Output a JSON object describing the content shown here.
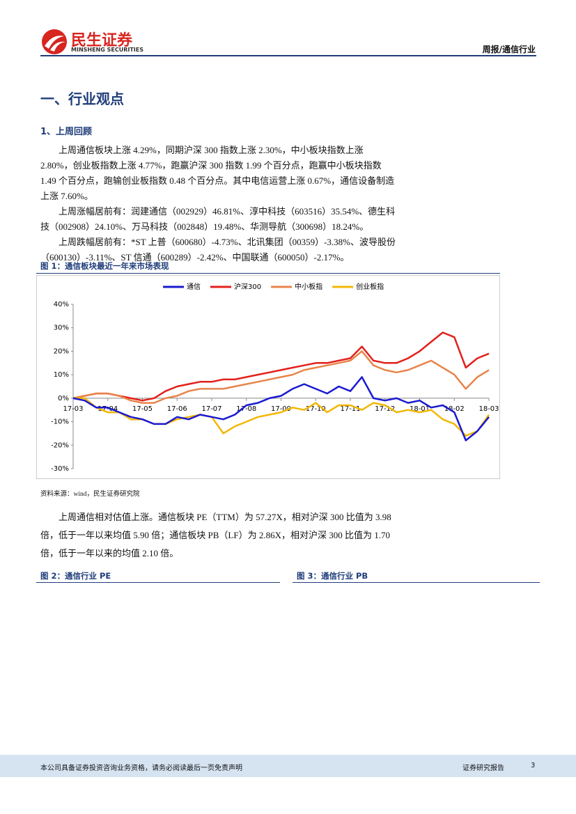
{
  "header": {
    "brand": "民生证券",
    "brand_en": "MINSHENG SECURITIES",
    "section": "周报/通信行业"
  },
  "heading": "一、行业观点",
  "subheading": "1、上周回顾",
  "paragraphs": [
    "上周通信板块上涨 4.29%，同期沪深 300 指数上涨 2.30%，中小板块指数上涨 2.80%，创业板指数上涨 4.77%，跑赢沪深 300 指数 1.99 个百分点，跑赢中小板块指数 1.49 个百分点，跑输创业板指数 0.48 个百分点。其中电信运营上涨 0.67%，通信设备制造上涨 7.60%。",
    "上周涨幅居前有：润建通信（002929）46.81%、淳中科技（603516）35.54%、德生科技（002908）24.10%、万马科技（002848）19.48%、华测导航（300698）18.24%。",
    "上周跌幅居前有：*ST 上普（600680）-4.73%、北讯集团（00359）-3.38%、波导股份（600130）-3.11%、ST 信通（600289）-2.42%、中国联通（600050）-2.17%。"
  ],
  "figure1": {
    "title": "图 1：通信板块最近一年来市场表现",
    "source": "资料来源：wind，民生证券研究院"
  },
  "chart_data": {
    "type": "line",
    "categories": [
      "17-03",
      null,
      null,
      "17-04",
      null,
      null,
      "17-05",
      null,
      null,
      "17-06",
      null,
      null,
      "17-07",
      null,
      null,
      "17-08",
      null,
      null,
      "17-09",
      null,
      null,
      "17-10",
      null,
      null,
      "17-11",
      null,
      null,
      "17-12",
      null,
      null,
      "18-01",
      null,
      null,
      "18-02",
      null,
      null,
      "18-03"
    ],
    "series": [
      {
        "name": "通信",
        "color": "#1a1ad0",
        "values": [
          0,
          -1,
          -4,
          -4,
          -6,
          -8,
          -9,
          -11,
          -11,
          -8,
          -9,
          -7,
          -8,
          -9,
          -7,
          -3,
          -2,
          0,
          1,
          4,
          6,
          4,
          2,
          5,
          3,
          9,
          0,
          -1,
          0,
          -2,
          -1,
          -4,
          -3,
          -6,
          -18,
          -14,
          -8
        ]
      },
      {
        "name": "沪深300",
        "color": "#e3201b",
        "values": [
          0,
          1,
          2,
          2,
          1,
          0,
          -1,
          0,
          3,
          5,
          6,
          7,
          7,
          8,
          8,
          9,
          10,
          11,
          12,
          13,
          14,
          15,
          15,
          16,
          17,
          22,
          16,
          15,
          15,
          17,
          20,
          24,
          28,
          26,
          13,
          17,
          19
        ]
      },
      {
        "name": "中小板指",
        "color": "#e8844a",
        "values": [
          0,
          1,
          2,
          2,
          1,
          -1,
          -2,
          -2,
          0,
          1,
          3,
          4,
          4,
          4,
          5,
          6,
          7,
          8,
          9,
          10,
          12,
          13,
          14,
          15,
          16,
          20,
          14,
          12,
          11,
          12,
          14,
          16,
          13,
          10,
          4,
          9,
          12
        ]
      },
      {
        "name": "创业板指",
        "color": "#f2b705",
        "values": [
          0,
          0,
          -4,
          -6,
          -6,
          -9,
          -9,
          -11,
          -11,
          -9,
          -8,
          -7,
          -8,
          -15,
          -12,
          -10,
          -8,
          -7,
          -6,
          -4,
          -5,
          -2,
          -6,
          -3,
          -3,
          -5,
          -2,
          -3,
          -6,
          -5,
          -6,
          -5,
          -9,
          -11,
          -16,
          -14,
          -7
        ]
      }
    ],
    "ylim": [
      -30,
      40
    ],
    "yticks": [
      {
        "value": -30,
        "label": "-30%"
      },
      {
        "value": -20,
        "label": "-20%"
      },
      {
        "value": -10,
        "label": "-10%"
      },
      {
        "value": 0,
        "label": "0%"
      },
      {
        "value": 10,
        "label": "10%"
      },
      {
        "value": 20,
        "label": "20%"
      },
      {
        "value": 30,
        "label": "30%"
      },
      {
        "value": 40,
        "label": "40%"
      }
    ],
    "legend": "top"
  },
  "paragraph_valuation": "上周通信相对估值上涨。通信板块 PE（TTM）为 57.27X，相对沪深 300 比值为 3.98 倍，低于一年以来均值 5.90 倍；通信板块 PB（LF）为 2.86X，相对沪深 300 比值为 1.70 倍，低于一年以来的均值 2.10 倍。",
  "figure2": {
    "title": "图 2：通信行业 PE"
  },
  "figure3": {
    "title": "图 3：通信行业 PB"
  },
  "footer": {
    "disclaimer": "本公司具备证券投资咨询业务资格，请务必阅读最后一页免责声明",
    "label": "证券研究报告",
    "page": "3"
  }
}
